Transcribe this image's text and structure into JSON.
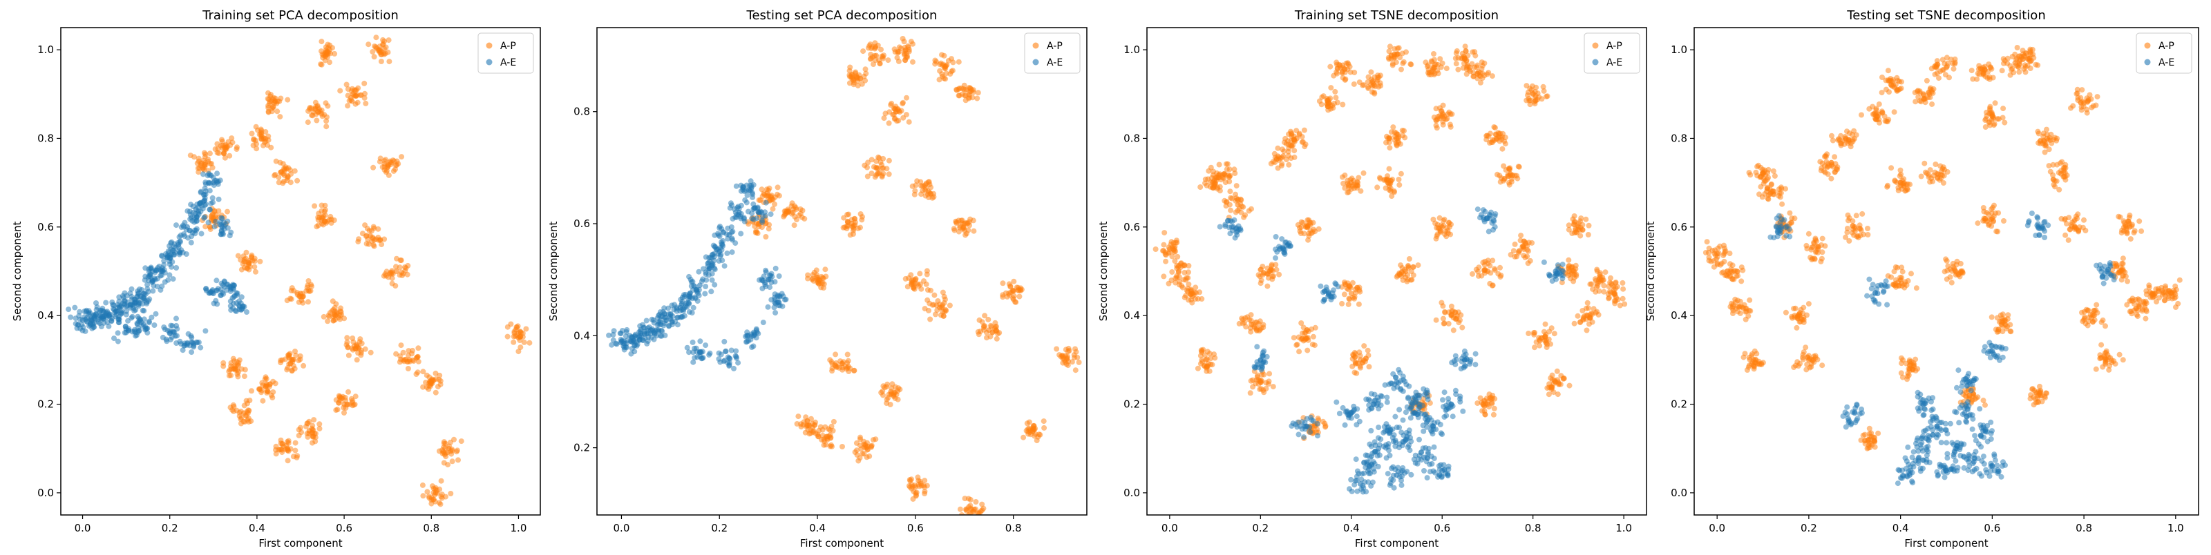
{
  "chart_data": [
    {
      "type": "scatter",
      "title": "Training set PCA decomposition",
      "xlabel": "First component",
      "ylabel": "Second component",
      "xlim": [
        -0.05,
        1.05
      ],
      "ylim": [
        -0.05,
        1.05
      ],
      "xticks": [
        "0.0",
        "0.2",
        "0.4",
        "0.6",
        "0.8",
        "1.0"
      ],
      "yticks": [
        "0.0",
        "0.2",
        "0.4",
        "0.6",
        "0.8",
        "1.0"
      ],
      "legend": "top-right",
      "series": [
        {
          "name": "A-P",
          "color": "#ff7f0e",
          "points": [
            [
              0.56,
              0.99
            ],
            [
              0.68,
              1.0
            ],
            [
              0.81,
              0.0
            ],
            [
              1.0,
              0.35
            ],
            [
              0.84,
              0.1
            ],
            [
              0.62,
              0.9
            ],
            [
              0.54,
              0.86
            ],
            [
              0.44,
              0.88
            ],
            [
              0.7,
              0.74
            ],
            [
              0.47,
              0.1
            ],
            [
              0.52,
              0.14
            ],
            [
              0.37,
              0.18
            ],
            [
              0.75,
              0.3
            ],
            [
              0.8,
              0.25
            ],
            [
              0.6,
              0.2
            ],
            [
              0.55,
              0.62
            ],
            [
              0.46,
              0.72
            ],
            [
              0.41,
              0.8
            ],
            [
              0.33,
              0.78
            ],
            [
              0.28,
              0.74
            ],
            [
              0.5,
              0.45
            ],
            [
              0.58,
              0.4
            ],
            [
              0.63,
              0.33
            ],
            [
              0.72,
              0.5
            ],
            [
              0.66,
              0.58
            ],
            [
              0.48,
              0.3
            ],
            [
              0.42,
              0.24
            ],
            [
              0.35,
              0.28
            ],
            [
              0.3,
              0.62
            ],
            [
              0.38,
              0.52
            ]
          ]
        },
        {
          "name": "A-E",
          "color": "#1f77b4",
          "points": [
            [
              0.0,
              0.39
            ],
            [
              0.02,
              0.39
            ],
            [
              0.04,
              0.4
            ],
            [
              0.06,
              0.4
            ],
            [
              0.08,
              0.41
            ],
            [
              0.1,
              0.42
            ],
            [
              0.12,
              0.43
            ],
            [
              0.14,
              0.45
            ],
            [
              0.16,
              0.48
            ],
            [
              0.18,
              0.5
            ],
            [
              0.2,
              0.53
            ],
            [
              0.22,
              0.56
            ],
            [
              0.24,
              0.6
            ],
            [
              0.26,
              0.64
            ],
            [
              0.28,
              0.66
            ],
            [
              0.3,
              0.7
            ],
            [
              0.32,
              0.6
            ],
            [
              0.34,
              0.46
            ],
            [
              0.14,
              0.38
            ],
            [
              0.2,
              0.36
            ],
            [
              0.1,
              0.37
            ],
            [
              0.25,
              0.34
            ],
            [
              0.3,
              0.45
            ],
            [
              0.36,
              0.42
            ]
          ]
        }
      ]
    },
    {
      "type": "scatter",
      "title": "Testing set PCA decomposition",
      "xlabel": "First component",
      "ylabel": "Second component",
      "xlim": [
        -0.05,
        0.95
      ],
      "ylim": [
        0.08,
        0.95
      ],
      "xticks": [
        "0.0",
        "0.2",
        "0.4",
        "0.6",
        "0.8"
      ],
      "yticks": [
        "0.2",
        "0.4",
        "0.6",
        "0.8"
      ],
      "legend": "top-right",
      "series": [
        {
          "name": "A-P",
          "color": "#ff7f0e",
          "points": [
            [
              0.52,
              0.9
            ],
            [
              0.58,
              0.91
            ],
            [
              0.66,
              0.88
            ],
            [
              0.71,
              0.83
            ],
            [
              0.91,
              0.36
            ],
            [
              0.72,
              0.09
            ],
            [
              0.6,
              0.13
            ],
            [
              0.56,
              0.8
            ],
            [
              0.48,
              0.86
            ],
            [
              0.62,
              0.66
            ],
            [
              0.7,
              0.6
            ],
            [
              0.8,
              0.48
            ],
            [
              0.75,
              0.41
            ],
            [
              0.84,
              0.23
            ],
            [
              0.5,
              0.2
            ],
            [
              0.42,
              0.22
            ],
            [
              0.38,
              0.24
            ],
            [
              0.45,
              0.35
            ],
            [
              0.55,
              0.3
            ],
            [
              0.35,
              0.62
            ],
            [
              0.3,
              0.65
            ],
            [
              0.28,
              0.6
            ],
            [
              0.4,
              0.5
            ],
            [
              0.6,
              0.5
            ],
            [
              0.65,
              0.45
            ],
            [
              0.47,
              0.6
            ],
            [
              0.52,
              0.7
            ]
          ]
        },
        {
          "name": "A-E",
          "color": "#1f77b4",
          "points": [
            [
              0.0,
              0.39
            ],
            [
              0.02,
              0.39
            ],
            [
              0.04,
              0.4
            ],
            [
              0.06,
              0.41
            ],
            [
              0.08,
              0.42
            ],
            [
              0.1,
              0.43
            ],
            [
              0.12,
              0.45
            ],
            [
              0.14,
              0.47
            ],
            [
              0.16,
              0.49
            ],
            [
              0.18,
              0.52
            ],
            [
              0.2,
              0.55
            ],
            [
              0.22,
              0.58
            ],
            [
              0.24,
              0.62
            ],
            [
              0.26,
              0.66
            ],
            [
              0.28,
              0.62
            ],
            [
              0.3,
              0.5
            ],
            [
              0.32,
              0.46
            ],
            [
              0.16,
              0.37
            ],
            [
              0.22,
              0.36
            ],
            [
              0.27,
              0.4
            ]
          ]
        }
      ]
    },
    {
      "type": "scatter",
      "title": "Training set TSNE decomposition",
      "xlabel": "First component",
      "ylabel": "Second component",
      "xlim": [
        -0.05,
        1.05
      ],
      "ylim": [
        -0.05,
        1.05
      ],
      "xticks": [
        "0.0",
        "0.2",
        "0.4",
        "0.6",
        "0.8",
        "1.0"
      ],
      "yticks": [
        "0.0",
        "0.2",
        "0.4",
        "0.6",
        "0.8",
        "1.0"
      ],
      "legend": "top-right",
      "series": [
        {
          "name": "A-P",
          "color": "#ff7f0e",
          "points": [
            [
              0.0,
              0.55
            ],
            [
              0.02,
              0.5
            ],
            [
              0.05,
              0.45
            ],
            [
              0.08,
              0.3
            ],
            [
              0.1,
              0.7
            ],
            [
              0.12,
              0.72
            ],
            [
              0.15,
              0.65
            ],
            [
              0.18,
              0.38
            ],
            [
              0.2,
              0.25
            ],
            [
              0.22,
              0.5
            ],
            [
              0.25,
              0.76
            ],
            [
              0.28,
              0.8
            ],
            [
              0.3,
              0.6
            ],
            [
              0.32,
              0.15
            ],
            [
              0.35,
              0.88
            ],
            [
              0.38,
              0.95
            ],
            [
              0.4,
              0.45
            ],
            [
              0.42,
              0.3
            ],
            [
              0.45,
              0.92
            ],
            [
              0.48,
              0.7
            ],
            [
              0.5,
              0.99
            ],
            [
              0.52,
              0.5
            ],
            [
              0.55,
              0.2
            ],
            [
              0.58,
              0.96
            ],
            [
              0.6,
              0.6
            ],
            [
              0.62,
              0.4
            ],
            [
              0.65,
              0.98
            ],
            [
              0.68,
              0.95
            ],
            [
              0.7,
              0.2
            ],
            [
              0.72,
              0.8
            ],
            [
              0.75,
              0.72
            ],
            [
              0.78,
              0.55
            ],
            [
              0.8,
              0.9
            ],
            [
              0.82,
              0.35
            ],
            [
              0.85,
              0.25
            ],
            [
              0.88,
              0.5
            ],
            [
              0.9,
              0.6
            ],
            [
              0.92,
              0.4
            ],
            [
              0.95,
              0.48
            ],
            [
              0.98,
              0.45
            ],
            [
              0.3,
              0.35
            ],
            [
              0.5,
              0.8
            ],
            [
              0.6,
              0.85
            ],
            [
              0.7,
              0.5
            ],
            [
              0.4,
              0.7
            ]
          ]
        },
        {
          "name": "A-E",
          "color": "#1f77b4",
          "points": [
            [
              0.42,
              0.02
            ],
            [
              0.44,
              0.06
            ],
            [
              0.46,
              0.1
            ],
            [
              0.48,
              0.14
            ],
            [
              0.5,
              0.04
            ],
            [
              0.52,
              0.12
            ],
            [
              0.54,
              0.18
            ],
            [
              0.56,
              0.08
            ],
            [
              0.58,
              0.15
            ],
            [
              0.6,
              0.05
            ],
            [
              0.62,
              0.2
            ],
            [
              0.45,
              0.2
            ],
            [
              0.4,
              0.18
            ],
            [
              0.55,
              0.22
            ],
            [
              0.5,
              0.25
            ],
            [
              0.14,
              0.6
            ],
            [
              0.2,
              0.3
            ],
            [
              0.35,
              0.45
            ],
            [
              0.7,
              0.62
            ],
            [
              0.85,
              0.5
            ],
            [
              0.3,
              0.15
            ],
            [
              0.65,
              0.3
            ],
            [
              0.25,
              0.55
            ]
          ]
        }
      ]
    },
    {
      "type": "scatter",
      "title": "Testing set TSNE decomposition",
      "xlabel": "First component",
      "ylabel": "Second component",
      "xlim": [
        -0.05,
        1.05
      ],
      "ylim": [
        -0.05,
        1.05
      ],
      "xticks": [
        "0.0",
        "0.2",
        "0.4",
        "0.6",
        "0.8",
        "1.0"
      ],
      "yticks": [
        "0.0",
        "0.2",
        "0.4",
        "0.6",
        "0.8",
        "1.0"
      ],
      "legend": "top-right",
      "series": [
        {
          "name": "A-P",
          "color": "#ff7f0e",
          "points": [
            [
              0.0,
              0.54
            ],
            [
              0.03,
              0.5
            ],
            [
              0.05,
              0.42
            ],
            [
              0.08,
              0.3
            ],
            [
              0.1,
              0.72
            ],
            [
              0.12,
              0.68
            ],
            [
              0.15,
              0.6
            ],
            [
              0.18,
              0.4
            ],
            [
              0.2,
              0.3
            ],
            [
              0.22,
              0.55
            ],
            [
              0.25,
              0.74
            ],
            [
              0.28,
              0.8
            ],
            [
              0.3,
              0.6
            ],
            [
              0.33,
              0.12
            ],
            [
              0.35,
              0.85
            ],
            [
              0.38,
              0.92
            ],
            [
              0.4,
              0.48
            ],
            [
              0.42,
              0.28
            ],
            [
              0.45,
              0.9
            ],
            [
              0.48,
              0.72
            ],
            [
              0.5,
              0.96
            ],
            [
              0.52,
              0.5
            ],
            [
              0.55,
              0.22
            ],
            [
              0.58,
              0.95
            ],
            [
              0.6,
              0.62
            ],
            [
              0.62,
              0.38
            ],
            [
              0.65,
              0.97
            ],
            [
              0.68,
              0.98
            ],
            [
              0.7,
              0.22
            ],
            [
              0.72,
              0.8
            ],
            [
              0.75,
              0.72
            ],
            [
              0.78,
              0.6
            ],
            [
              0.8,
              0.88
            ],
            [
              0.82,
              0.4
            ],
            [
              0.85,
              0.3
            ],
            [
              0.88,
              0.5
            ],
            [
              0.9,
              0.6
            ],
            [
              0.92,
              0.42
            ],
            [
              0.95,
              0.45
            ],
            [
              0.99,
              0.45
            ],
            [
              0.6,
              0.85
            ],
            [
              0.4,
              0.7
            ]
          ]
        },
        {
          "name": "A-E",
          "color": "#1f77b4",
          "points": [
            [
              0.42,
              0.04
            ],
            [
              0.44,
              0.08
            ],
            [
              0.46,
              0.12
            ],
            [
              0.48,
              0.15
            ],
            [
              0.5,
              0.05
            ],
            [
              0.52,
              0.1
            ],
            [
              0.54,
              0.18
            ],
            [
              0.56,
              0.07
            ],
            [
              0.58,
              0.14
            ],
            [
              0.6,
              0.06
            ],
            [
              0.45,
              0.2
            ],
            [
              0.55,
              0.25
            ],
            [
              0.14,
              0.6
            ],
            [
              0.35,
              0.45
            ],
            [
              0.7,
              0.6
            ],
            [
              0.85,
              0.5
            ],
            [
              0.3,
              0.18
            ],
            [
              0.6,
              0.32
            ]
          ]
        }
      ]
    }
  ]
}
